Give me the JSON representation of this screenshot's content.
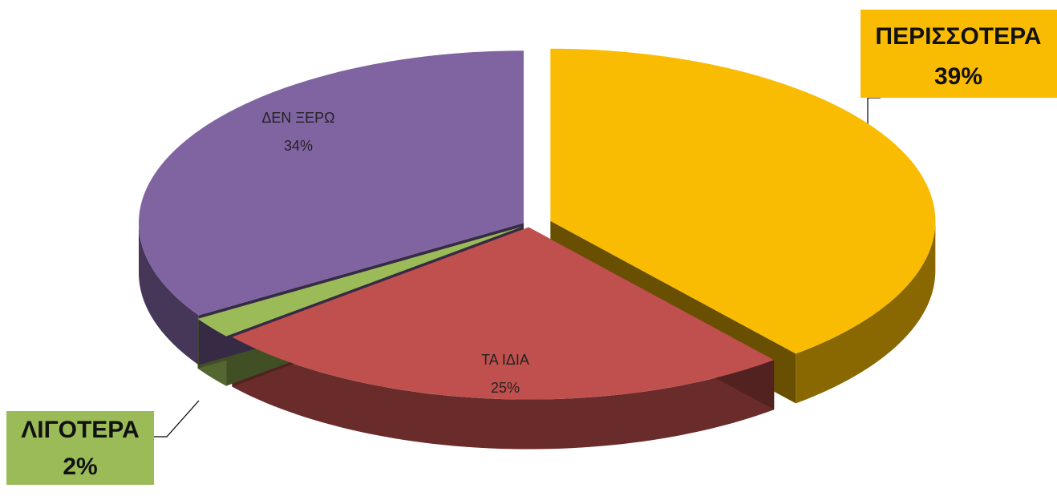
{
  "chart_data": {
    "type": "pie",
    "categories": [
      "ΠΕΡΙΣΣΟΤΕΡΑ",
      "ΤΑ ΙΔΙΑ",
      "ΛΙΓΟΤΕΡΑ",
      "ΔΕΝ ΞΕΡΩ"
    ],
    "values": [
      39,
      25,
      2,
      34
    ],
    "value_labels": [
      "39%",
      "25%",
      "2%",
      "34%"
    ],
    "colors": [
      "#f9bc02",
      "#c0504d",
      "#9bbb59",
      "#8064a2"
    ]
  }
}
